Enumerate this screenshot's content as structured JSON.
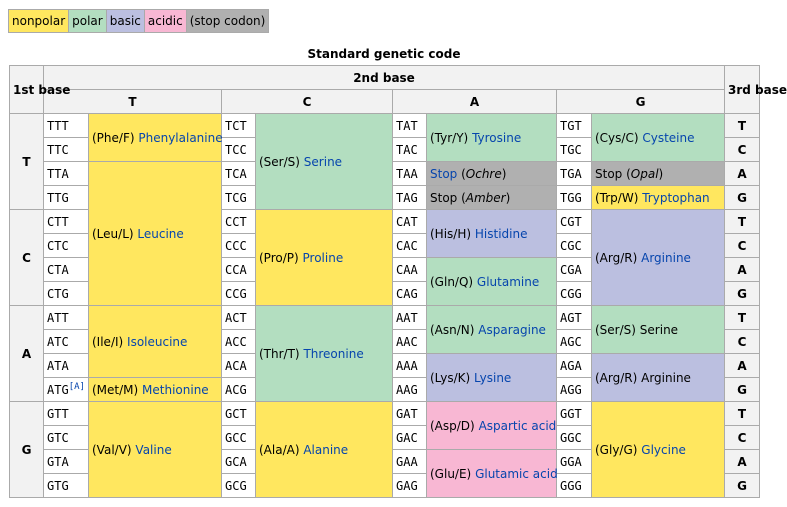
{
  "legend": {
    "nonpolar": "nonpolar",
    "polar": "polar",
    "basic": "basic",
    "acidic": "acidic",
    "stop": "(stop codon)"
  },
  "caption": "Standard genetic code",
  "headers": {
    "first_base": "1st base",
    "second_base": "2nd base",
    "third_base": "3rd base",
    "second": [
      "T",
      "C",
      "A",
      "G"
    ]
  },
  "colors": {
    "nonpolar": "#ffe75f",
    "polar": "#b3dec0",
    "basic": "#bbbfe0",
    "acidic": "#f8b7d3",
    "stop": "#b0b0b0",
    "link": "#0645ad"
  },
  "rows": [
    {
      "first": "T",
      "codons": {
        "T": [
          "TTT",
          "TTC",
          "TTA",
          "TTG"
        ],
        "C": [
          "TCT",
          "TCC",
          "TCA",
          "TCG"
        ],
        "A": [
          "TAT",
          "TAC",
          "TAA",
          "TAG"
        ],
        "G": [
          "TGT",
          "TGC",
          "TGA",
          "TGG"
        ]
      },
      "third": [
        "T",
        "C",
        "A",
        "G"
      ]
    },
    {
      "first": "C",
      "codons": {
        "T": [
          "CTT",
          "CTC",
          "CTA",
          "CTG"
        ],
        "C": [
          "CCT",
          "CCC",
          "CCA",
          "CCG"
        ],
        "A": [
          "CAT",
          "CAC",
          "CAA",
          "CAG"
        ],
        "G": [
          "CGT",
          "CGC",
          "CGA",
          "CGG"
        ]
      },
      "third": [
        "T",
        "C",
        "A",
        "G"
      ]
    },
    {
      "first": "A",
      "codons": {
        "T": [
          "ATT",
          "ATC",
          "ATA",
          "ATG"
        ],
        "C": [
          "ACT",
          "ACC",
          "ACA",
          "ACG"
        ],
        "A": [
          "AAT",
          "AAC",
          "AAA",
          "AAG"
        ],
        "G": [
          "AGT",
          "AGC",
          "AGA",
          "AGG"
        ]
      },
      "third": [
        "T",
        "C",
        "A",
        "G"
      ]
    },
    {
      "first": "G",
      "codons": {
        "T": [
          "GTT",
          "GTC",
          "GTA",
          "GTG"
        ],
        "C": [
          "GCT",
          "GCC",
          "GCA",
          "GCG"
        ],
        "A": [
          "GAT",
          "GAC",
          "GAA",
          "GAG"
        ],
        "G": [
          "GGT",
          "GGC",
          "GGA",
          "GGG"
        ]
      },
      "third": [
        "T",
        "C",
        "A",
        "G"
      ]
    }
  ],
  "amino": {
    "phe": {
      "code": "(Phe/F)",
      "name": "Phenylalanine"
    },
    "leu": {
      "code": "(Leu/L)",
      "name": "Leucine"
    },
    "ile": {
      "code": "(Ile/I)",
      "name": "Isoleucine"
    },
    "met": {
      "code": "(Met/M)",
      "name": "Methionine",
      "note": "[A]"
    },
    "val": {
      "code": "(Val/V)",
      "name": "Valine"
    },
    "ser1": {
      "code": "(Ser/S)",
      "name": "Serine"
    },
    "pro": {
      "code": "(Pro/P)",
      "name": "Proline"
    },
    "thr": {
      "code": "(Thr/T)",
      "name": "Threonine"
    },
    "ala": {
      "code": "(Ala/A)",
      "name": "Alanine"
    },
    "tyr": {
      "code": "(Tyr/Y)",
      "name": "Tyrosine"
    },
    "stop_ochre": {
      "word": "Stop",
      "name": "Ochre"
    },
    "stop_amber": {
      "word": "Stop",
      "name": "Amber"
    },
    "his": {
      "code": "(His/H)",
      "name": "Histidine"
    },
    "gln": {
      "code": "(Gln/Q)",
      "name": "Glutamine"
    },
    "asn": {
      "code": "(Asn/N)",
      "name": "Asparagine"
    },
    "lys": {
      "code": "(Lys/K)",
      "name": "Lysine"
    },
    "asp": {
      "code": "(Asp/D)",
      "name": "Aspartic acid"
    },
    "glu": {
      "code": "(Glu/E)",
      "name": "Glutamic acid"
    },
    "cys": {
      "code": "(Cys/C)",
      "name": "Cysteine"
    },
    "stop_opal": {
      "word": "Stop",
      "name": "Opal"
    },
    "trp": {
      "code": "(Trp/W)",
      "name": "Tryptophan"
    },
    "arg1": {
      "code": "(Arg/R)",
      "name": "Arginine"
    },
    "ser2": {
      "code": "(Ser/S)",
      "name": "Serine"
    },
    "arg2": {
      "code": "(Arg/R)",
      "name": "Arginine"
    },
    "gly": {
      "code": "(Gly/G)",
      "name": "Glycine"
    }
  }
}
